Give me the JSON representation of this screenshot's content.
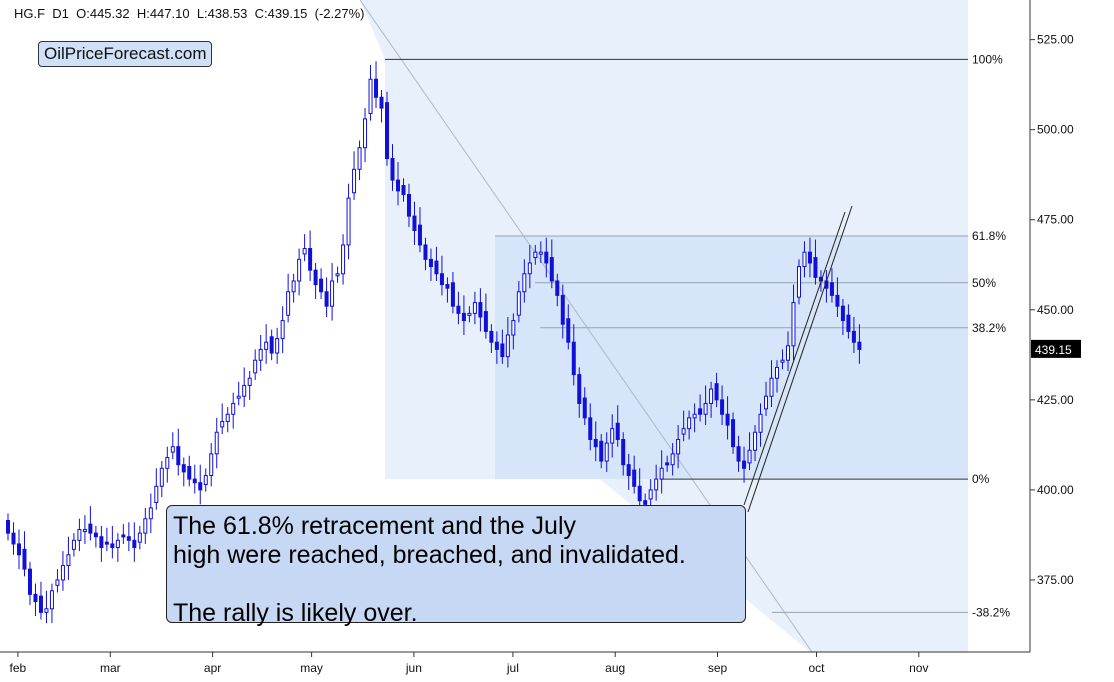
{
  "header": {
    "symbol": "HG.F",
    "interval": "D1",
    "ohlc_text": "HG.F  D1  O:445.32  H:447.10  L:438.53  C:439.15  (-2.27%)"
  },
  "watermark": "OilPriceForecast.com",
  "annotation": {
    "line1": "The 61.8% retracement and the July",
    "line2": "high were reached, breached, and invalidated.",
    "line3": "",
    "line4": "The rally is likely over."
  },
  "colors": {
    "candle": "#1010d8",
    "fib_zone": "#e8f0fc",
    "fib_zone_strong": "#d6e5f9",
    "annotation_bg": "#c7d8f5"
  },
  "chart_data": {
    "type": "candlestick",
    "ylim": [
      355,
      536
    ],
    "y_ticks": [
      "525.00",
      "500.00",
      "475.00",
      "450.00",
      "425.00",
      "400.00",
      "375.00"
    ],
    "y_tick_values": [
      525,
      500,
      475,
      450,
      425,
      400,
      375
    ],
    "x_labels": [
      "feb",
      "mar",
      "apr",
      "may",
      "jun",
      "jul",
      "aug",
      "sep",
      "oct",
      "nov"
    ],
    "x_label_dates": [
      "2021-02-01",
      "2021-03-01",
      "2021-04-01",
      "2021-05-01",
      "2021-06-01",
      "2021-07-01",
      "2021-08-01",
      "2021-09-01",
      "2021-10-01",
      "2021-11-01"
    ],
    "last_price": "439.15",
    "fib_levels": [
      {
        "label": "100%",
        "value": 519.5
      },
      {
        "label": "61.8%",
        "value": 470.5
      },
      {
        "label": "50%",
        "value": 457.5
      },
      {
        "label": "38.2%",
        "value": 445.0
      },
      {
        "label": "0%",
        "value": 403.0
      },
      {
        "label": "-38.2%",
        "value": 366.0
      }
    ],
    "series": [
      {
        "name": "",
        "x_from": "2021-01-29",
        "x_to": "2021-10-14",
        "closes": [
          388,
          385,
          382,
          378,
          371,
          369,
          366,
          367,
          372,
          375,
          379,
          382,
          386,
          389,
          389,
          388,
          387,
          384,
          385,
          384,
          386,
          387,
          386,
          384,
          388,
          392,
          395,
          401,
          406,
          409,
          412,
          407,
          405,
          403,
          402,
          400,
          404,
          410,
          416,
          419,
          421,
          424,
          426,
          429,
          431,
          436,
          439,
          441,
          438,
          442,
          447,
          455,
          458,
          464,
          467,
          461,
          457,
          455,
          451,
          458,
          460,
          468,
          481,
          489,
          495,
          503,
          514,
          509,
          506,
          492,
          486,
          483,
          482,
          476,
          472,
          468,
          464,
          462,
          460,
          457,
          456,
          451,
          449,
          447,
          449,
          452,
          448,
          444,
          441,
          439,
          437,
          443,
          447,
          455,
          460,
          463,
          466,
          466,
          463,
          458,
          454,
          446,
          441,
          432,
          424,
          420,
          414,
          412,
          408,
          413,
          417,
          414,
          407,
          404,
          401,
          397,
          396,
          400,
          403,
          406,
          407,
          410,
          414,
          417,
          420,
          421,
          421,
          424,
          428,
          425,
          421,
          418,
          412,
          408,
          406,
          411,
          416,
          421,
          426,
          431,
          434,
          436,
          440,
          452,
          462,
          466,
          463,
          459,
          458,
          456,
          454,
          451,
          447,
          444,
          441,
          439
        ]
      }
    ]
  }
}
